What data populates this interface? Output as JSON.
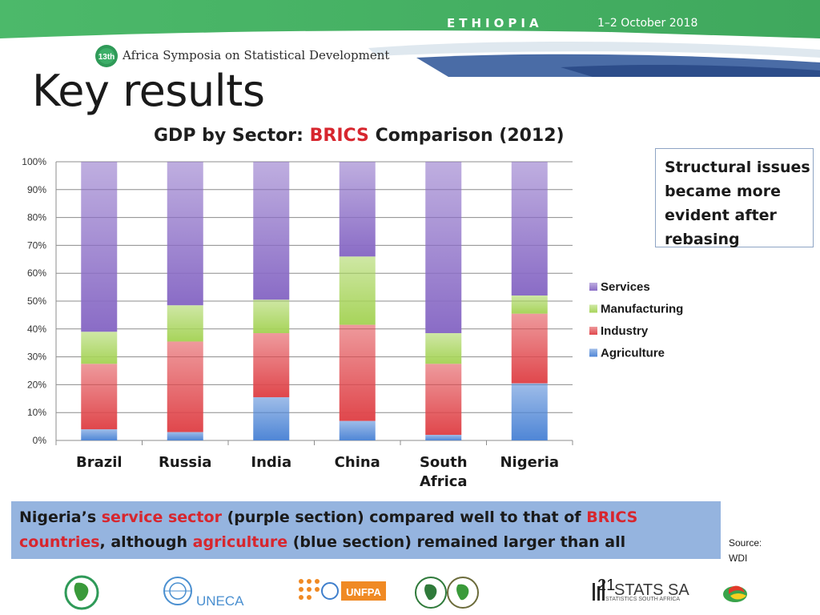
{
  "header": {
    "country": "ETHIOPIA",
    "dates": "1–2 October 2018",
    "symposium_badge": "13th",
    "symposium": "Africa Symposia on Statistical Development"
  },
  "page_title": "Key results",
  "chart_title": {
    "part1": "GDP by Sector: ",
    "highlight": "BRICS",
    "part2": " Comparison (2012)"
  },
  "note_box": "Structural issues became more evident after rebasing",
  "summary": {
    "parts": [
      {
        "text": "Nigeria’s ",
        "red": false
      },
      {
        "text": "service sector",
        "red": true
      },
      {
        "text": " (purple section) compared well to that of ",
        "red": false
      },
      {
        "text": "BRICS countries",
        "red": true
      },
      {
        "text": ", although ",
        "red": false
      },
      {
        "text": "agriculture",
        "red": true
      },
      {
        "text": " (blue section) remained larger than all",
        "red": false
      }
    ]
  },
  "source": "Source: WDI",
  "page_number": "21",
  "footer": {
    "uneca": "UNECA",
    "unfpa": "UNFPA",
    "stats_sa": "STATS SA",
    "stats_sa_sub": "STATISTICS SOUTH AFRICA"
  },
  "colors": {
    "header_green": "#4cb96a",
    "agriculture": "#4f86d6",
    "industry": "#e0474c",
    "manufacturing": "#a7d45a",
    "services": "#8a6cc6",
    "title_red": "#d7262e",
    "summary_bg": "#95b4df"
  },
  "chart_data": {
    "type": "bar",
    "stacked": true,
    "percent": true,
    "categories": [
      "Brazil",
      "Russia",
      "India",
      "China",
      "South Africa",
      "Nigeria"
    ],
    "series": [
      {
        "name": "Agriculture",
        "values": [
          4,
          3,
          15.5,
          7,
          2,
          20.5
        ]
      },
      {
        "name": "Industry",
        "values": [
          23.5,
          32.5,
          23,
          34.5,
          25.5,
          25
        ]
      },
      {
        "name": "Manufacturing",
        "values": [
          11.5,
          13,
          12,
          24.5,
          11,
          6.5
        ]
      },
      {
        "name": "Services",
        "values": [
          61,
          51.5,
          49.5,
          34,
          61.5,
          48
        ]
      }
    ],
    "yticks": [
      "0%",
      "10%",
      "20%",
      "30%",
      "40%",
      "50%",
      "60%",
      "70%",
      "80%",
      "90%",
      "100%"
    ],
    "ylim": [
      0,
      100
    ],
    "grid": true,
    "legend_position": "right",
    "title": "GDP by Sector: BRICS Comparison (2012)"
  }
}
